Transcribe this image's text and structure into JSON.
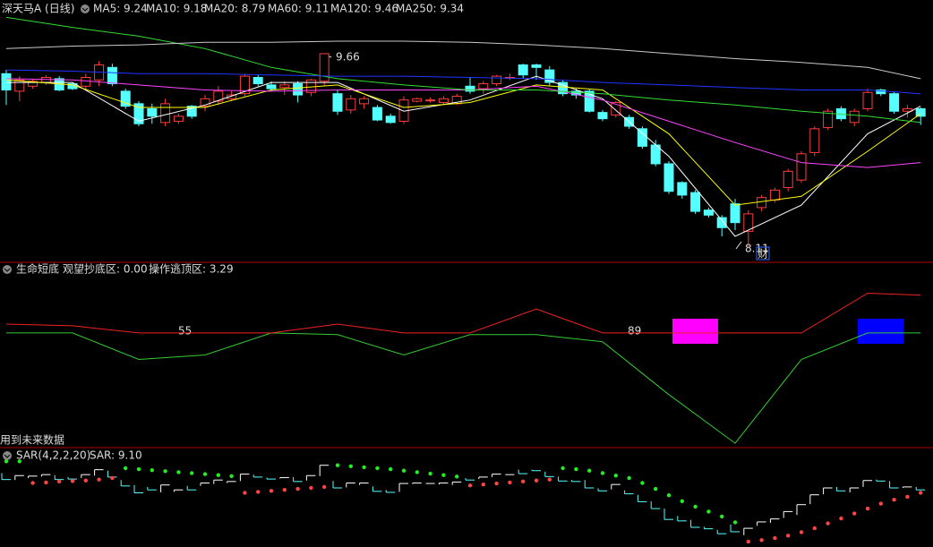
{
  "chart_data": [
    {
      "type": "candlestick",
      "title": "深天马A (日线)",
      "open": [
        9.5,
        9.36,
        9.4,
        9.43,
        9.46,
        9.42,
        9.4,
        9.45,
        9.55,
        9.36,
        9.26,
        9.22,
        9.11,
        9.12,
        9.24,
        9.24,
        9.28,
        9.3,
        9.34,
        9.47,
        9.41,
        9.39,
        9.42,
        9.35,
        9.44,
        9.34,
        9.21,
        9.26,
        9.23,
        9.16,
        9.12,
        9.28,
        9.29,
        9.27,
        9.26,
        9.4,
        9.38,
        9.42,
        9.47,
        9.57,
        9.57,
        9.53,
        9.43,
        9.36,
        9.36,
        9.19,
        9.17,
        9.15,
        9.06,
        8.93,
        8.78,
        8.63,
        8.55,
        8.41,
        8.35,
        8.46,
        8.24,
        8.43,
        8.49,
        8.59,
        8.65,
        8.87,
        9.07,
        9.22,
        9.11,
        9.22,
        9.37,
        9.34,
        9.2,
        9.22
      ],
      "high": [
        9.53,
        9.48,
        9.46,
        9.49,
        9.48,
        9.43,
        9.5,
        9.6,
        9.58,
        9.38,
        9.28,
        9.26,
        9.3,
        9.18,
        9.25,
        9.33,
        9.4,
        9.36,
        9.5,
        9.49,
        9.44,
        9.44,
        9.44,
        9.46,
        9.66,
        9.37,
        9.33,
        9.32,
        9.25,
        9.18,
        9.32,
        9.31,
        9.31,
        9.32,
        9.34,
        9.47,
        9.44,
        9.49,
        9.5,
        9.58,
        9.58,
        9.56,
        9.45,
        9.38,
        9.38,
        9.21,
        9.28,
        9.17,
        9.08,
        8.97,
        8.8,
        8.64,
        8.57,
        8.43,
        8.37,
        8.5,
        8.41,
        8.53,
        8.59,
        8.74,
        8.88,
        9.08,
        9.22,
        9.24,
        9.22,
        9.38,
        9.38,
        9.36,
        9.25,
        9.23
      ],
      "low": [
        9.25,
        9.28,
        9.38,
        9.41,
        9.36,
        9.37,
        9.37,
        9.4,
        9.4,
        9.22,
        9.08,
        9.1,
        9.08,
        9.1,
        9.14,
        9.2,
        9.25,
        9.28,
        9.32,
        9.4,
        9.36,
        9.33,
        9.27,
        9.32,
        9.4,
        9.17,
        9.18,
        9.22,
        9.12,
        9.1,
        9.1,
        9.27,
        9.27,
        9.25,
        9.25,
        9.34,
        9.34,
        9.4,
        9.45,
        9.46,
        9.45,
        9.4,
        9.32,
        9.3,
        9.19,
        9.12,
        9.15,
        9.06,
        8.9,
        8.76,
        8.54,
        8.5,
        8.38,
        8.35,
        8.2,
        8.25,
        8.11,
        8.4,
        8.47,
        8.56,
        8.63,
        8.84,
        9.05,
        9.12,
        9.08,
        9.2,
        9.32,
        9.18,
        9.15,
        9.09
      ],
      "close": [
        9.37,
        9.45,
        9.44,
        9.47,
        9.37,
        9.38,
        9.47,
        9.57,
        9.42,
        9.24,
        9.1,
        9.16,
        9.26,
        9.16,
        9.16,
        9.3,
        9.36,
        9.33,
        9.48,
        9.42,
        9.38,
        9.41,
        9.33,
        9.45,
        9.66,
        9.2,
        9.3,
        9.3,
        9.13,
        9.11,
        9.29,
        9.3,
        9.29,
        9.3,
        9.32,
        9.36,
        9.42,
        9.48,
        9.47,
        9.49,
        9.55,
        9.43,
        9.34,
        9.33,
        9.2,
        9.14,
        9.27,
        9.08,
        8.92,
        8.78,
        8.56,
        8.53,
        8.4,
        8.37,
        8.27,
        8.31,
        8.38,
        8.51,
        8.57,
        8.72,
        8.86,
        9.06,
        9.2,
        9.14,
        9.2,
        9.35,
        9.34,
        9.2,
        9.22,
        9.16
      ],
      "up_color": "#ff3c3c",
      "down_color": "#54ffff",
      "ylim": [
        8.0,
        10.0
      ],
      "series": [
        {
          "name": "MA5: 9.24",
          "color": "#ffffff",
          "x": [
            0,
            5,
            10,
            15,
            20,
            25,
            30,
            35,
            40,
            45,
            50,
            55,
            60,
            65,
            69
          ],
          "values": [
            9.43,
            9.43,
            9.12,
            9.25,
            9.43,
            9.43,
            9.2,
            9.29,
            9.48,
            9.3,
            8.84,
            8.2,
            8.45,
            9.02,
            9.24
          ]
        },
        {
          "name": "MA10: 9.18",
          "color": "#ffff00",
          "x": [
            0,
            5,
            10,
            15,
            20,
            25,
            30,
            35,
            40,
            45,
            50,
            55,
            60,
            65,
            69
          ],
          "values": [
            9.45,
            9.41,
            9.23,
            9.23,
            9.37,
            9.41,
            9.23,
            9.27,
            9.41,
            9.37,
            9.02,
            8.45,
            8.52,
            8.88,
            9.18
          ]
        },
        {
          "name": "MA20: 8.79",
          "color": "#ff44ff",
          "x": [
            0,
            5,
            10,
            15,
            20,
            25,
            30,
            35,
            40,
            45,
            50,
            55,
            60,
            65,
            69
          ],
          "values": [
            9.46,
            9.45,
            9.41,
            9.37,
            9.36,
            9.37,
            9.37,
            9.37,
            9.4,
            9.29,
            9.12,
            8.95,
            8.79,
            8.75,
            8.79
          ]
        },
        {
          "name": "MA60: 9.11",
          "color": "#33dd33",
          "x": [
            0,
            5,
            10,
            15,
            20,
            25,
            30,
            35,
            40,
            45,
            50,
            55,
            60,
            65,
            69
          ],
          "values": [
            9.95,
            9.87,
            9.8,
            9.7,
            9.55,
            9.46,
            9.41,
            9.37,
            9.37,
            9.34,
            9.29,
            9.25,
            9.2,
            9.16,
            9.11
          ]
        },
        {
          "name": "MA120: 9.46",
          "color": "#c8c8c8",
          "x": [
            0,
            5,
            10,
            15,
            20,
            25,
            30,
            35,
            40,
            45,
            50,
            55,
            60,
            65,
            69
          ],
          "values": [
            9.7,
            9.72,
            9.73,
            9.75,
            9.75,
            9.76,
            9.76,
            9.75,
            9.73,
            9.7,
            9.66,
            9.62,
            9.59,
            9.55,
            9.46
          ]
        },
        {
          "name": "MA250: 9.34",
          "color": "#2233ff",
          "x": [
            0,
            5,
            10,
            15,
            20,
            25,
            30,
            35,
            40,
            45,
            50,
            55,
            60,
            65,
            69
          ],
          "values": [
            9.53,
            9.52,
            9.5,
            9.5,
            9.49,
            9.48,
            9.48,
            9.47,
            9.46,
            9.43,
            9.41,
            9.39,
            9.37,
            9.37,
            9.34
          ]
        }
      ],
      "annotations": [
        "9.66",
        "8.11",
        "财"
      ]
    },
    {
      "type": "line",
      "title": "生命短底",
      "note": "用到未来数据",
      "ylim": [
        -10,
        6
      ],
      "series": [
        {
          "name": "观望抄底区: 0.00",
          "color": "#33cc33",
          "x": [
            0,
            5,
            10,
            15,
            20,
            25,
            30,
            35,
            40,
            45,
            50,
            55,
            60,
            65,
            69
          ],
          "values": [
            0,
            0,
            -2.31,
            -1.92,
            0,
            -0.15,
            -1.92,
            -0.15,
            -0.15,
            -0.77,
            -5.38,
            -9.62,
            -2.31,
            0,
            0
          ]
        },
        {
          "name": "操作逃顶区: 3.29",
          "color": "#ee2222",
          "x": [
            0,
            5,
            10,
            15,
            20,
            25,
            30,
            35,
            40,
            45,
            50,
            55,
            60,
            65,
            69
          ],
          "values": [
            0.77,
            0.62,
            0,
            0,
            0,
            0.77,
            0,
            0,
            2.08,
            0,
            0,
            0,
            0,
            3.46,
            3.29
          ]
        }
      ],
      "annotations": [
        "55",
        "89"
      ]
    },
    {
      "type": "sar",
      "title": "SAR(4,2,2,20)",
      "label": "SAR: 9.10",
      "ylim": [
        8.0,
        9.8
      ],
      "above_color": "#22ee22",
      "below_color": "#ff4444",
      "values": [
        9.74,
        9.74,
        9.3,
        9.31,
        9.33,
        9.34,
        9.35,
        9.37,
        9.4,
        9.6,
        9.58,
        9.56,
        9.54,
        9.52,
        9.5,
        9.48,
        9.46,
        9.44,
        9.1,
        9.12,
        9.14,
        9.16,
        9.18,
        9.2,
        9.22,
        9.66,
        9.64,
        9.62,
        9.6,
        9.58,
        9.55,
        9.52,
        9.49,
        9.46,
        9.43,
        9.25,
        9.27,
        9.29,
        9.31,
        9.33,
        9.35,
        9.37,
        9.6,
        9.58,
        9.55,
        9.5,
        9.45,
        9.4,
        9.3,
        9.18,
        9.05,
        8.93,
        8.82,
        8.72,
        8.62,
        8.5,
        8.11,
        8.14,
        8.18,
        8.23,
        8.3,
        8.38,
        8.48,
        8.58,
        8.68,
        8.78,
        8.88,
        8.96,
        9.02,
        9.1
      ]
    }
  ]
}
